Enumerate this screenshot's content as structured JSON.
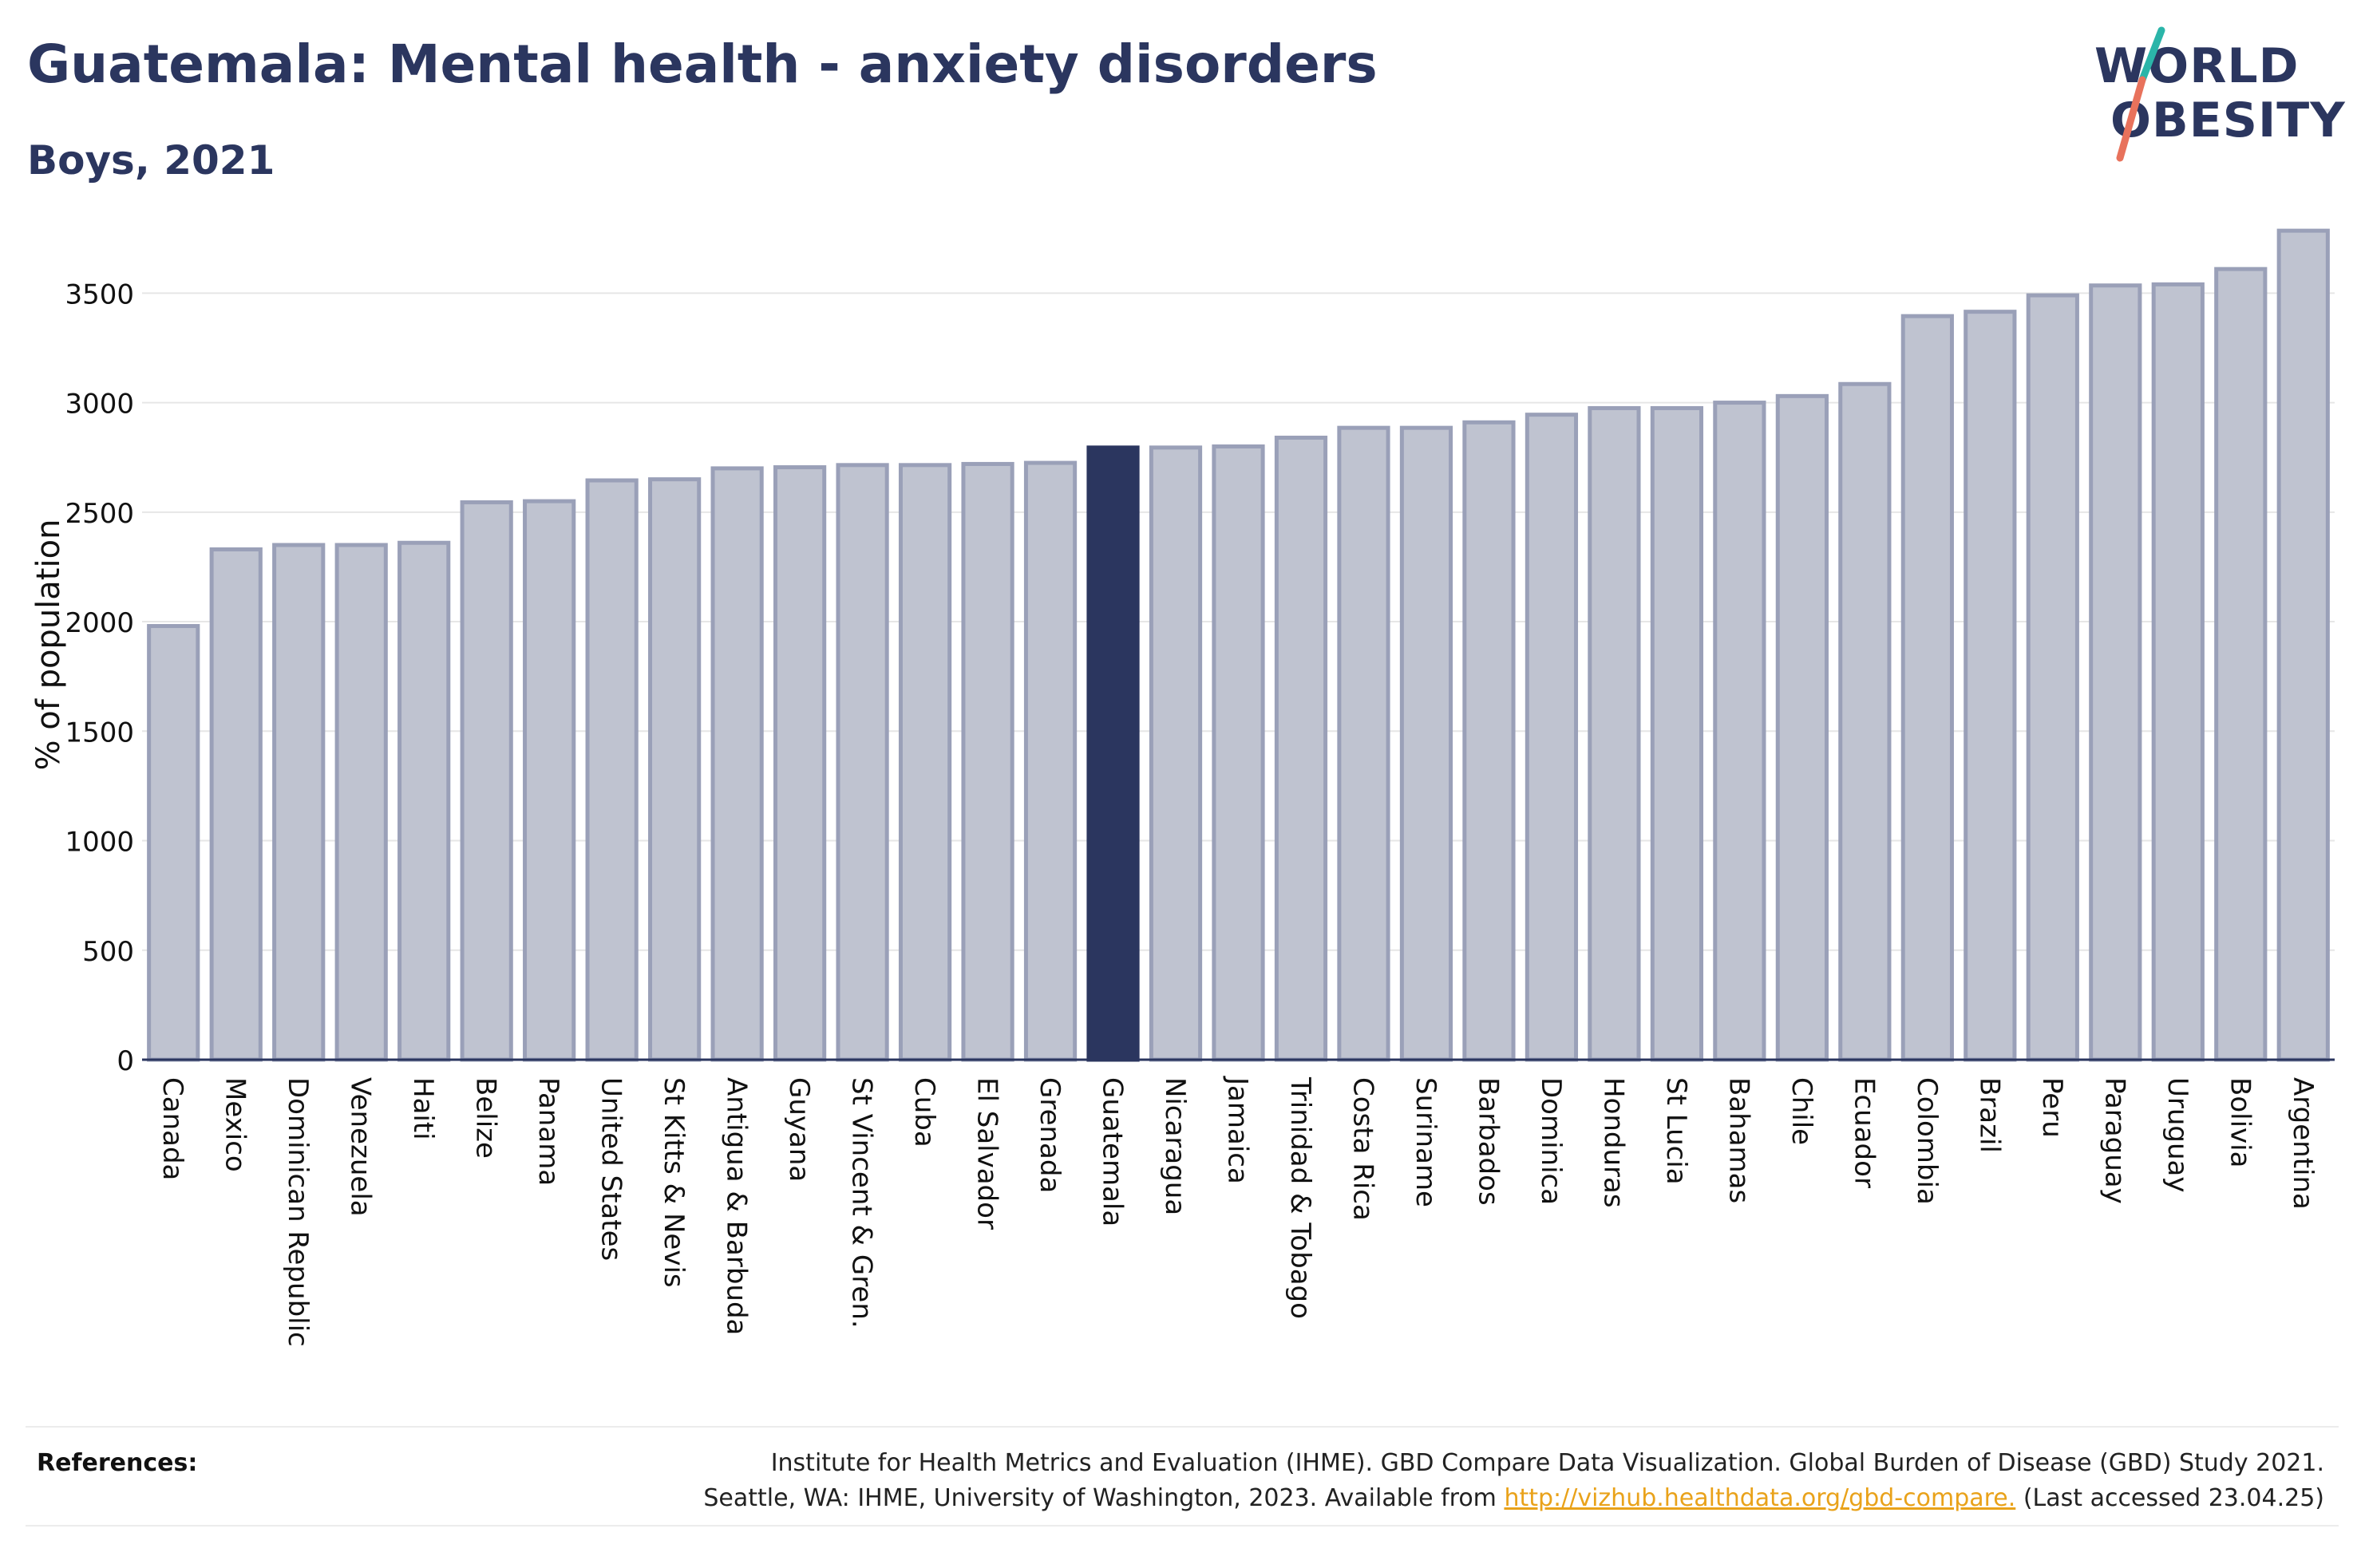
{
  "header": {
    "title": "Guatemala: Mental health - anxiety disorders",
    "subtitle": "Boys, 2021"
  },
  "logo": {
    "line1": "WORLD",
    "line2": "OBESITY",
    "colors": {
      "text": "#2b365f",
      "slash_top": "#2bb5a9",
      "slash_bottom": "#e8725c"
    }
  },
  "references": {
    "label": "References:",
    "line1": "Institute for Health Metrics and Evaluation (IHME). GBD Compare Data Visualization. Global Burden of Disease (GBD) Study 2021.",
    "line2_prefix": "Seattle, WA: IHME, University of Washington, 2023. Available from ",
    "link": "http://vizhub.healthdata.org/gbd-compare.",
    "line2_suffix": " (Last accessed 23.04.25)"
  },
  "colors": {
    "bar": "#bfc3d0",
    "bar_border": "#9aa0b8",
    "highlight": "#2b365f",
    "grid": "#e6e6e6",
    "axis": "#2b365f"
  },
  "chart_data": {
    "type": "bar",
    "title": "Guatemala: Mental health - anxiety disorders",
    "subtitle": "Boys, 2021",
    "ylabel": "% of population",
    "xlabel": "",
    "ylim": [
      0,
      3800
    ],
    "yticks": [
      0,
      500,
      1000,
      1500,
      2000,
      2500,
      3000,
      3500
    ],
    "grid": true,
    "highlight": "Guatemala",
    "categories": [
      "Canada",
      "Mexico",
      "Dominican Republic",
      "Venezuela",
      "Haiti",
      "Belize",
      "Panama",
      "United States",
      "St Kitts & Nevis",
      "Antigua & Barbuda",
      "Guyana",
      "St Vincent & Gren.",
      "Cuba",
      "El Salvador",
      "Grenada",
      "Guatemala",
      "Nicaragua",
      "Jamaica",
      "Trinidad & Tobago",
      "Costa Rica",
      "Suriname",
      "Barbados",
      "Dominica",
      "Honduras",
      "St Lucia",
      "Bahamas",
      "Chile",
      "Ecuador",
      "Colombia",
      "Brazil",
      "Peru",
      "Paraguay",
      "Uruguay",
      "Bolivia",
      "Argentina"
    ],
    "values": [
      1980,
      2330,
      2350,
      2350,
      2360,
      2545,
      2550,
      2645,
      2650,
      2700,
      2705,
      2715,
      2715,
      2720,
      2725,
      2795,
      2795,
      2800,
      2840,
      2885,
      2885,
      2910,
      2945,
      2975,
      2975,
      3000,
      3030,
      3085,
      3395,
      3415,
      3490,
      3535,
      3540,
      3610,
      3785
    ]
  }
}
